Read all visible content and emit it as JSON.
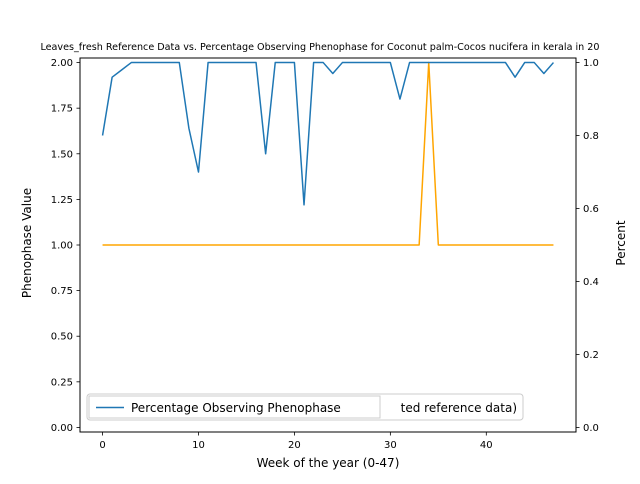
{
  "chart_data": {
    "type": "line",
    "title": "Leaves_fresh Reference Data vs. Percentage Observing Phenophase for Coconut palm-Cocos nucifera in kerala in 20",
    "xlabel": "Week of the year (0-47)",
    "ylabel": "Phenophase Value",
    "ylabel_right": "Percent",
    "xlim": [
      -2.35,
      49.35
    ],
    "ylim": [
      -0.025,
      2.025
    ],
    "ylim_right": [
      -0.0125,
      1.0125
    ],
    "xticks": [
      "0",
      "10",
      "20",
      "30",
      "40"
    ],
    "yticks": [
      "0.00",
      "0.25",
      "0.50",
      "0.75",
      "1.00",
      "1.25",
      "1.50",
      "1.75",
      "2.00"
    ],
    "yticks_right": [
      "0.0",
      "0.2",
      "0.4",
      "0.6",
      "0.8",
      "1.0"
    ],
    "grid": false,
    "legend": {
      "placement": "lower-left",
      "entries_visible": [
        "Percentage Observing Phenophase"
      ],
      "occluded_fragment": "ted reference data)"
    },
    "series": [
      {
        "name": "",
        "axis": "left",
        "color": "#ffa500",
        "x": [
          0,
          1,
          2,
          3,
          4,
          5,
          6,
          7,
          8,
          9,
          10,
          11,
          12,
          13,
          14,
          15,
          16,
          17,
          18,
          19,
          20,
          21,
          22,
          23,
          24,
          25,
          26,
          27,
          28,
          29,
          30,
          31,
          32,
          33,
          34,
          35,
          36,
          37,
          38,
          39,
          40,
          41,
          42,
          43,
          44,
          45,
          46,
          47
        ],
        "values": [
          1,
          1,
          1,
          1,
          1,
          1,
          1,
          1,
          1,
          1,
          1,
          1,
          1,
          1,
          1,
          1,
          1,
          1,
          1,
          1,
          1,
          1,
          1,
          1,
          1,
          1,
          1,
          1,
          1,
          1,
          1,
          1,
          1,
          1,
          2,
          1,
          1,
          1,
          1,
          1,
          1,
          1,
          1,
          1,
          1,
          1,
          1,
          1
        ]
      },
      {
        "name": "Percentage Observing Phenophase",
        "axis": "right",
        "color": "#1f77b4",
        "x": [
          0,
          1,
          2,
          3,
          4,
          5,
          6,
          7,
          8,
          9,
          10,
          11,
          12,
          13,
          14,
          15,
          16,
          17,
          18,
          19,
          20,
          21,
          22,
          23,
          24,
          25,
          26,
          27,
          28,
          29,
          30,
          31,
          32,
          33,
          34,
          35,
          36,
          37,
          38,
          39,
          40,
          41,
          42,
          43,
          44,
          45,
          46,
          47
        ],
        "values": [
          0.8,
          0.96,
          0.98,
          1.0,
          1.0,
          1.0,
          1.0,
          1.0,
          1.0,
          0.82,
          0.7,
          1.0,
          1.0,
          1.0,
          1.0,
          1.0,
          1.0,
          0.75,
          1.0,
          1.0,
          1.0,
          0.61,
          1.0,
          1.0,
          0.97,
          1.0,
          1.0,
          1.0,
          1.0,
          1.0,
          1.0,
          0.9,
          1.0,
          1.0,
          1.0,
          1.0,
          1.0,
          1.0,
          1.0,
          1.0,
          1.0,
          1.0,
          1.0,
          0.96,
          1.0,
          1.0,
          0.97,
          1.0
        ]
      }
    ]
  }
}
